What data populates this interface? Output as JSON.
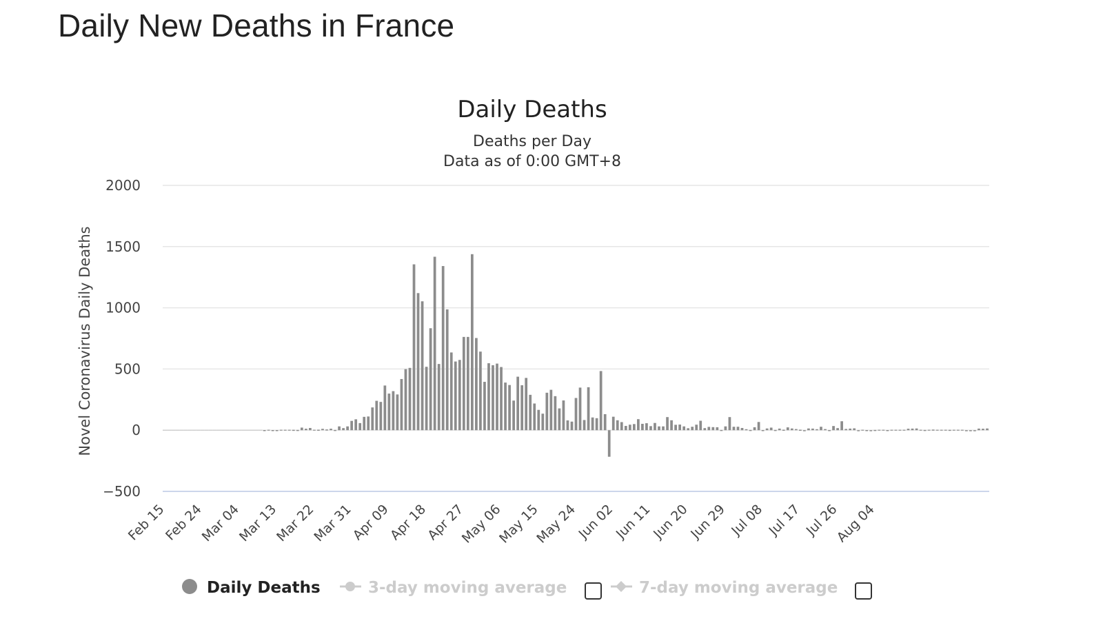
{
  "page": {
    "title": "Daily New Deaths in France"
  },
  "chart_data": {
    "type": "bar",
    "title": "Daily Deaths",
    "subtitle_lines": [
      "Deaths per Day",
      "Data as of 0:00 GMT+8"
    ],
    "ylabel": "Novel Coronavirus Daily Deaths",
    "xlabel": "",
    "ylim": [
      -500,
      2000
    ],
    "yticks": [
      2000,
      1500,
      1000,
      500,
      0,
      -500
    ],
    "grid": true,
    "legend_position": "bottom",
    "start_date": "2020-02-15",
    "x_tick_labels": [
      "Feb 15",
      "Feb 24",
      "Mar 04",
      "Mar 13",
      "Mar 22",
      "Mar 31",
      "Apr 09",
      "Apr 18",
      "Apr 27",
      "May 06",
      "May 15",
      "May 24",
      "Jun 02",
      "Jun 11",
      "Jun 20",
      "Jun 29",
      "Jul 08",
      "Jul 17",
      "Jul 26",
      "Aug 04"
    ],
    "colors": {
      "bar": "#8c8c8c",
      "grid": "#e6e6e6",
      "zero_axis": "#ccd6eb",
      "legend_inactive": "#cccccc"
    },
    "series": [
      {
        "name": "Daily Deaths",
        "visible": true,
        "values": [
          0,
          0,
          0,
          0,
          0,
          0,
          0,
          0,
          0,
          0,
          0,
          0,
          0,
          0,
          0,
          0,
          0,
          0,
          0,
          0,
          0,
          0,
          0,
          0,
          1,
          0,
          1,
          1,
          0,
          0,
          0,
          3,
          2,
          21,
          12,
          18,
          0,
          4,
          11,
          6,
          12,
          2,
          31,
          17,
          31,
          76,
          89,
          58,
          109,
          112,
          186,
          240,
          231,
          365,
          299,
          319,
          292,
          418,
          499,
          509,
          1355,
          1120,
          1053,
          518,
          833,
          1417,
          541,
          1341,
          987,
          635,
          561,
          574,
          762,
          762,
          1438,
          753,
          642,
          395,
          547,
          531,
          544,
          516,
          389,
          369,
          242,
          437,
          367,
          427,
          289,
          218,
          166,
          135,
          306,
          330,
          278,
          178,
          243,
          80,
          70,
          263,
          348,
          83,
          351,
          104,
          98,
          483,
          131,
          -217,
          110,
          81,
          66,
          35,
          45,
          50,
          90,
          52,
          57,
          33,
          59,
          31,
          31,
          107,
          81,
          44,
          46,
          31,
          16,
          28,
          45,
          77,
          17,
          27,
          25,
          24,
          2,
          31,
          107,
          28,
          28,
          18,
          8,
          2,
          24,
          67,
          1,
          14,
          21,
          2,
          13,
          4,
          23,
          14,
          9,
          4,
          -3,
          14,
          13,
          8,
          28,
          9,
          1,
          34,
          17,
          73,
          10,
          13,
          15,
          -2,
          0,
          1,
          -1,
          2,
          0,
          0,
          1,
          0,
          0,
          0,
          0,
          12,
          13,
          14,
          0,
          2,
          0,
          5,
          0,
          0,
          0,
          3,
          0,
          0,
          0,
          -4,
          -1,
          -3,
          13,
          12,
          14
        ]
      },
      {
        "name": "3-day moving average",
        "visible": false
      },
      {
        "name": "7-day moving average",
        "visible": false
      }
    ]
  }
}
